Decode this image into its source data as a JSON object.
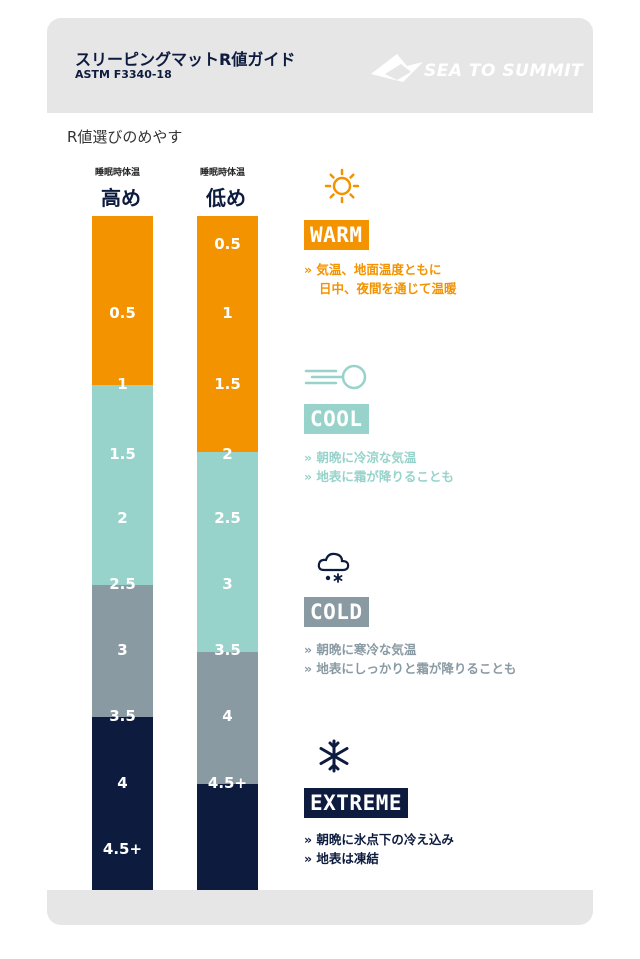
{
  "header": {
    "title": "スリーピングマットR値ガイド",
    "subtitle": "ASTM F3340-18",
    "logo_text": "SEA TO SUMMIT"
  },
  "guide_label": "R値選びのめやす",
  "columns": [
    {
      "small_label": "睡眠時体温",
      "big_label": "高め"
    },
    {
      "small_label": "睡眠時体温",
      "big_label": "低め"
    }
  ],
  "colors": {
    "warm": "#f39300",
    "cool": "#97d3cb",
    "cold": "#8a9aa3",
    "extreme": "#0d1b3e"
  },
  "bars": [
    {
      "segments": [
        {
          "category": "warm",
          "from": 0,
          "to": 0.25
        },
        {
          "category": "cool",
          "from": 0.25,
          "to": 0.548
        },
        {
          "category": "cold",
          "from": 0.548,
          "to": 0.744
        },
        {
          "category": "extreme",
          "from": 0.744,
          "to": 1
        }
      ],
      "ticks": [
        {
          "label": "0.5",
          "pos": 0.145
        },
        {
          "label": "1",
          "pos": 0.25
        },
        {
          "label": "1.5",
          "pos": 0.354
        },
        {
          "label": "2",
          "pos": 0.45
        },
        {
          "label": "2.5",
          "pos": 0.548
        },
        {
          "label": "3",
          "pos": 0.646
        },
        {
          "label": "3.5",
          "pos": 0.744
        },
        {
          "label": "4",
          "pos": 0.842
        },
        {
          "label": "4.5+",
          "pos": 0.94
        }
      ]
    },
    {
      "segments": [
        {
          "category": "warm",
          "from": 0,
          "to": 0.35
        },
        {
          "category": "cool",
          "from": 0.35,
          "to": 0.647
        },
        {
          "category": "cold",
          "from": 0.647,
          "to": 0.843
        },
        {
          "category": "extreme",
          "from": 0.843,
          "to": 1
        }
      ],
      "ticks": [
        {
          "label": "0.5",
          "pos": 0.043
        },
        {
          "label": "1",
          "pos": 0.145
        },
        {
          "label": "1.5",
          "pos": 0.25
        },
        {
          "label": "2",
          "pos": 0.354
        },
        {
          "label": "2.5",
          "pos": 0.45
        },
        {
          "label": "3",
          "pos": 0.548
        },
        {
          "label": "3.5",
          "pos": 0.646
        },
        {
          "label": "4",
          "pos": 0.744
        },
        {
          "label": "4.5+",
          "pos": 0.842
        }
      ]
    }
  ],
  "categories": [
    {
      "key": "warm",
      "icon": "sun-icon",
      "label": "WARM",
      "lines": [
        "» 気温、地面温度ともに",
        "日中、夜間を通じて温暖"
      ]
    },
    {
      "key": "cool",
      "icon": "wind-icon",
      "label": "COOL",
      "lines": [
        "» 朝晩に冷涼な気温",
        "» 地表に霜が降りることも"
      ]
    },
    {
      "key": "cold",
      "icon": "cloud-snow-icon",
      "label": "COLD",
      "lines": [
        "» 朝晩に寒冷な気温",
        "» 地表にしっかりと霜が降りることも"
      ]
    },
    {
      "key": "extreme",
      "icon": "snowflake-icon",
      "label": "EXTREME",
      "lines": [
        "» 朝晩に氷点下の冷え込み",
        "» 地表は凍結"
      ]
    }
  ]
}
